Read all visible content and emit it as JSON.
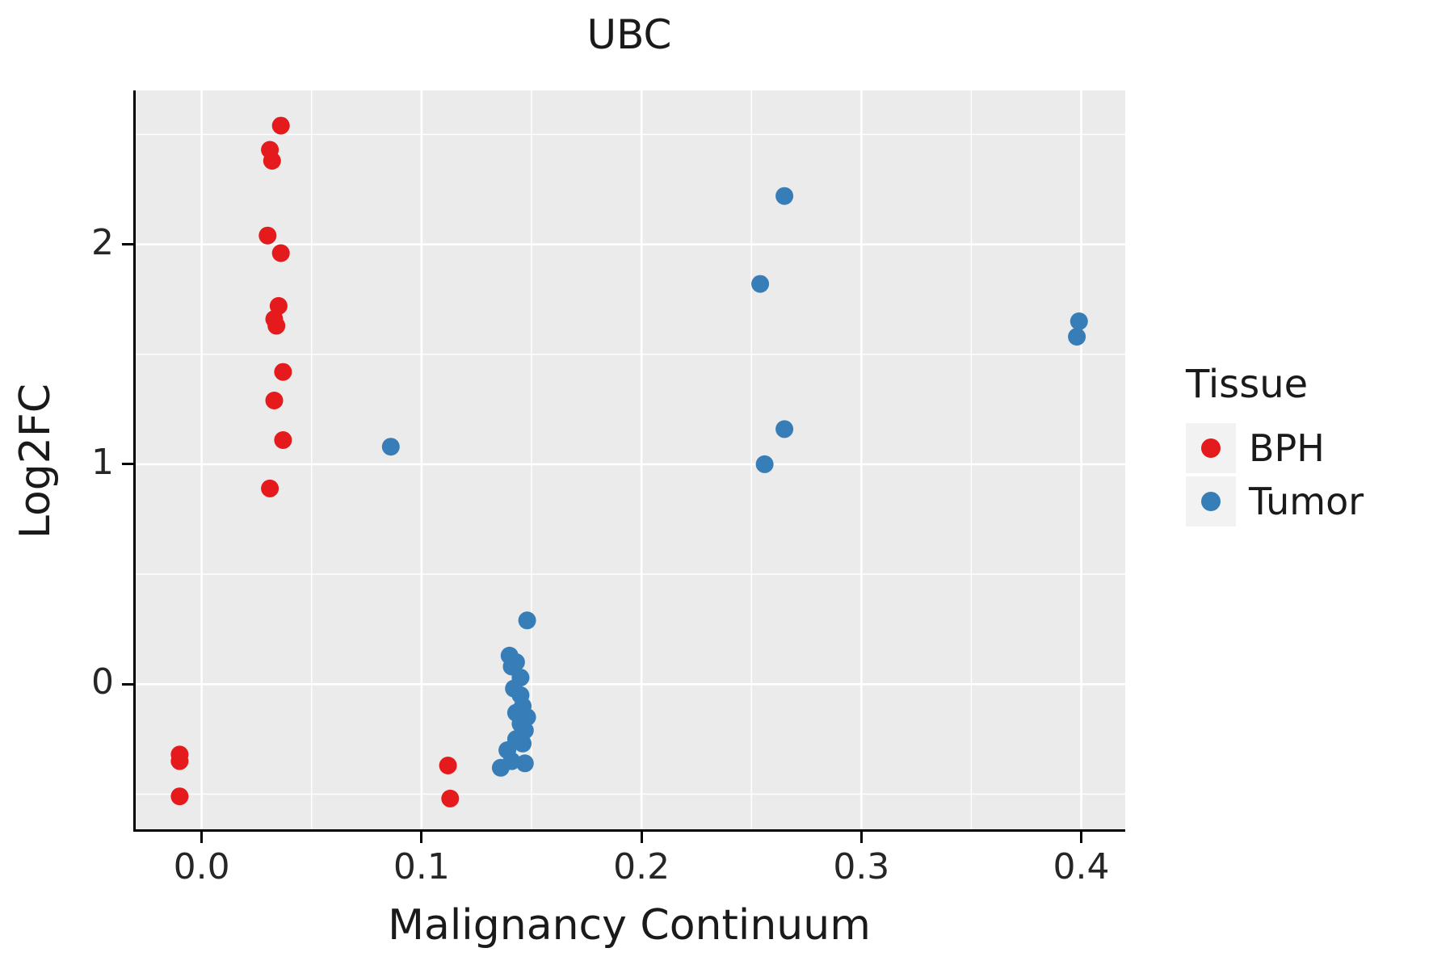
{
  "title": "UBC",
  "legend": {
    "title": "Tissue",
    "items": [
      {
        "label": "BPH",
        "color": "#E41A1C"
      },
      {
        "label": "Tumor",
        "color": "#377EB8"
      }
    ]
  },
  "panel": {
    "background": "#EBEBEB",
    "grid_color": "#FFFFFF",
    "axis_color": "#000000"
  },
  "chart_data": {
    "type": "scatter",
    "title": "UBC",
    "xlabel": "Malignancy Continuum",
    "ylabel": "Log2FC",
    "xlim": [
      -0.03,
      0.42
    ],
    "ylim": [
      -0.66,
      2.7
    ],
    "x_ticks": [
      0.0,
      0.1,
      0.2,
      0.3,
      0.4
    ],
    "x_tick_labels": [
      "0.0",
      "0.1",
      "0.2",
      "0.3",
      "0.4"
    ],
    "y_ticks": [
      0,
      1,
      2
    ],
    "y_tick_labels": [
      "0",
      "1",
      "2"
    ],
    "x_minor_ticks": [
      0.05,
      0.15,
      0.25,
      0.35
    ],
    "y_minor_ticks": [
      -0.5,
      0.5,
      1.5,
      2.5
    ],
    "grid": true,
    "legend_position": "right",
    "point_radius": 11,
    "series": [
      {
        "name": "BPH",
        "color": "#E41A1C",
        "points": [
          [
            0.036,
            2.54
          ],
          [
            0.031,
            2.43
          ],
          [
            0.032,
            2.38
          ],
          [
            0.03,
            2.04
          ],
          [
            0.036,
            1.96
          ],
          [
            0.035,
            1.72
          ],
          [
            0.033,
            1.66
          ],
          [
            0.034,
            1.63
          ],
          [
            0.037,
            1.42
          ],
          [
            0.033,
            1.29
          ],
          [
            0.037,
            1.11
          ],
          [
            0.031,
            0.89
          ],
          [
            -0.01,
            -0.32
          ],
          [
            -0.01,
            -0.35
          ],
          [
            -0.01,
            -0.51
          ],
          [
            0.112,
            -0.37
          ],
          [
            0.113,
            -0.52
          ]
        ]
      },
      {
        "name": "Tumor",
        "color": "#377EB8",
        "points": [
          [
            0.086,
            1.08
          ],
          [
            0.265,
            2.22
          ],
          [
            0.254,
            1.82
          ],
          [
            0.265,
            1.16
          ],
          [
            0.256,
            1.0
          ],
          [
            0.399,
            1.65
          ],
          [
            0.398,
            1.58
          ],
          [
            0.148,
            0.29
          ],
          [
            0.14,
            0.13
          ],
          [
            0.143,
            0.1
          ],
          [
            0.141,
            0.08
          ],
          [
            0.145,
            0.03
          ],
          [
            0.142,
            -0.02
          ],
          [
            0.145,
            -0.05
          ],
          [
            0.146,
            -0.1
          ],
          [
            0.143,
            -0.13
          ],
          [
            0.148,
            -0.15
          ],
          [
            0.145,
            -0.18
          ],
          [
            0.147,
            -0.21
          ],
          [
            0.143,
            -0.25
          ],
          [
            0.146,
            -0.27
          ],
          [
            0.139,
            -0.3
          ],
          [
            0.141,
            -0.35
          ],
          [
            0.147,
            -0.36
          ],
          [
            0.136,
            -0.38
          ]
        ]
      }
    ]
  }
}
